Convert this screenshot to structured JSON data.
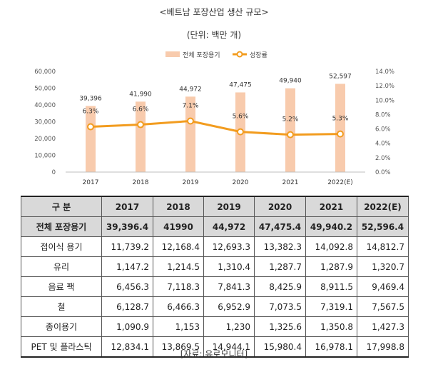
{
  "title": "<베트남 포장산업 생산 규모>",
  "unit": "(단위: 백만 개)",
  "chart_data": {
    "type": "bar",
    "categories": [
      "2017",
      "2018",
      "2019",
      "2020",
      "2021",
      "2022(E)"
    ],
    "series": [
      {
        "name": "전체 포장용기",
        "type": "bar",
        "axis": "left",
        "values": [
          39396,
          41990,
          44972,
          47475,
          49940,
          52597
        ],
        "labels": [
          "39,396",
          "41,990",
          "44,972",
          "47,475",
          "49,940",
          "52,597"
        ]
      },
      {
        "name": "성장률",
        "type": "line",
        "axis": "right",
        "values": [
          6.3,
          6.6,
          7.1,
          5.6,
          5.2,
          5.3
        ],
        "labels": [
          "6.3%",
          "6.6%",
          "7.1%",
          "5.6%",
          "5.2%",
          "5.3%"
        ]
      }
    ],
    "left_axis": {
      "ylim": [
        0,
        60000
      ],
      "ticks": [
        "0",
        "10,000",
        "20,000",
        "30,000",
        "40,000",
        "50,000",
        "60,000"
      ]
    },
    "right_axis": {
      "ylim": [
        0,
        14
      ],
      "ticks": [
        "0.0%",
        "2.0%",
        "4.0%",
        "6.0%",
        "8.0%",
        "10.0%",
        "12.0%",
        "14.0%"
      ]
    },
    "legend_position": "top",
    "grid": false,
    "colors": {
      "bar": "#f8cbad",
      "line": "#f29c1f",
      "marker_fill": "#ffffff"
    }
  },
  "table": {
    "headers": [
      "구 분",
      "2017",
      "2018",
      "2019",
      "2020",
      "2021",
      "2022(E)"
    ],
    "rows": [
      [
        "전체 포장용기",
        "39,396.4",
        "41990",
        "44,972",
        "47,475.4",
        "49,940.2",
        "52,596.4"
      ],
      [
        "접이식 용기",
        "11,739.2",
        "12,168.4",
        "12,693.3",
        "13,382.3",
        "14,092.8",
        "14,812.7"
      ],
      [
        "유리",
        "1,147.2",
        "1,214.5",
        "1,310.4",
        "1,287.7",
        "1,287.9",
        "1,320.7"
      ],
      [
        "음료 팩",
        "6,456.3",
        "7,118.3",
        "7,841.3",
        "8,425.9",
        "8,911.5",
        "9,469.4"
      ],
      [
        "철",
        "6,128.7",
        "6,466.3",
        "6,952.9",
        "7,073.5",
        "7,319.1",
        "7,567.5"
      ],
      [
        "종이용기",
        "1,090.9",
        "1,153",
        "1,230",
        "1,325.6",
        "1,350.8",
        "1,427.3"
      ],
      [
        "PET 및 플라스틱",
        "12,834.1",
        "13,869.5",
        "14,944.1",
        "15,980.4",
        "16,978.1",
        "17,998.8"
      ]
    ]
  },
  "source": "[자료: 유로모니터]"
}
